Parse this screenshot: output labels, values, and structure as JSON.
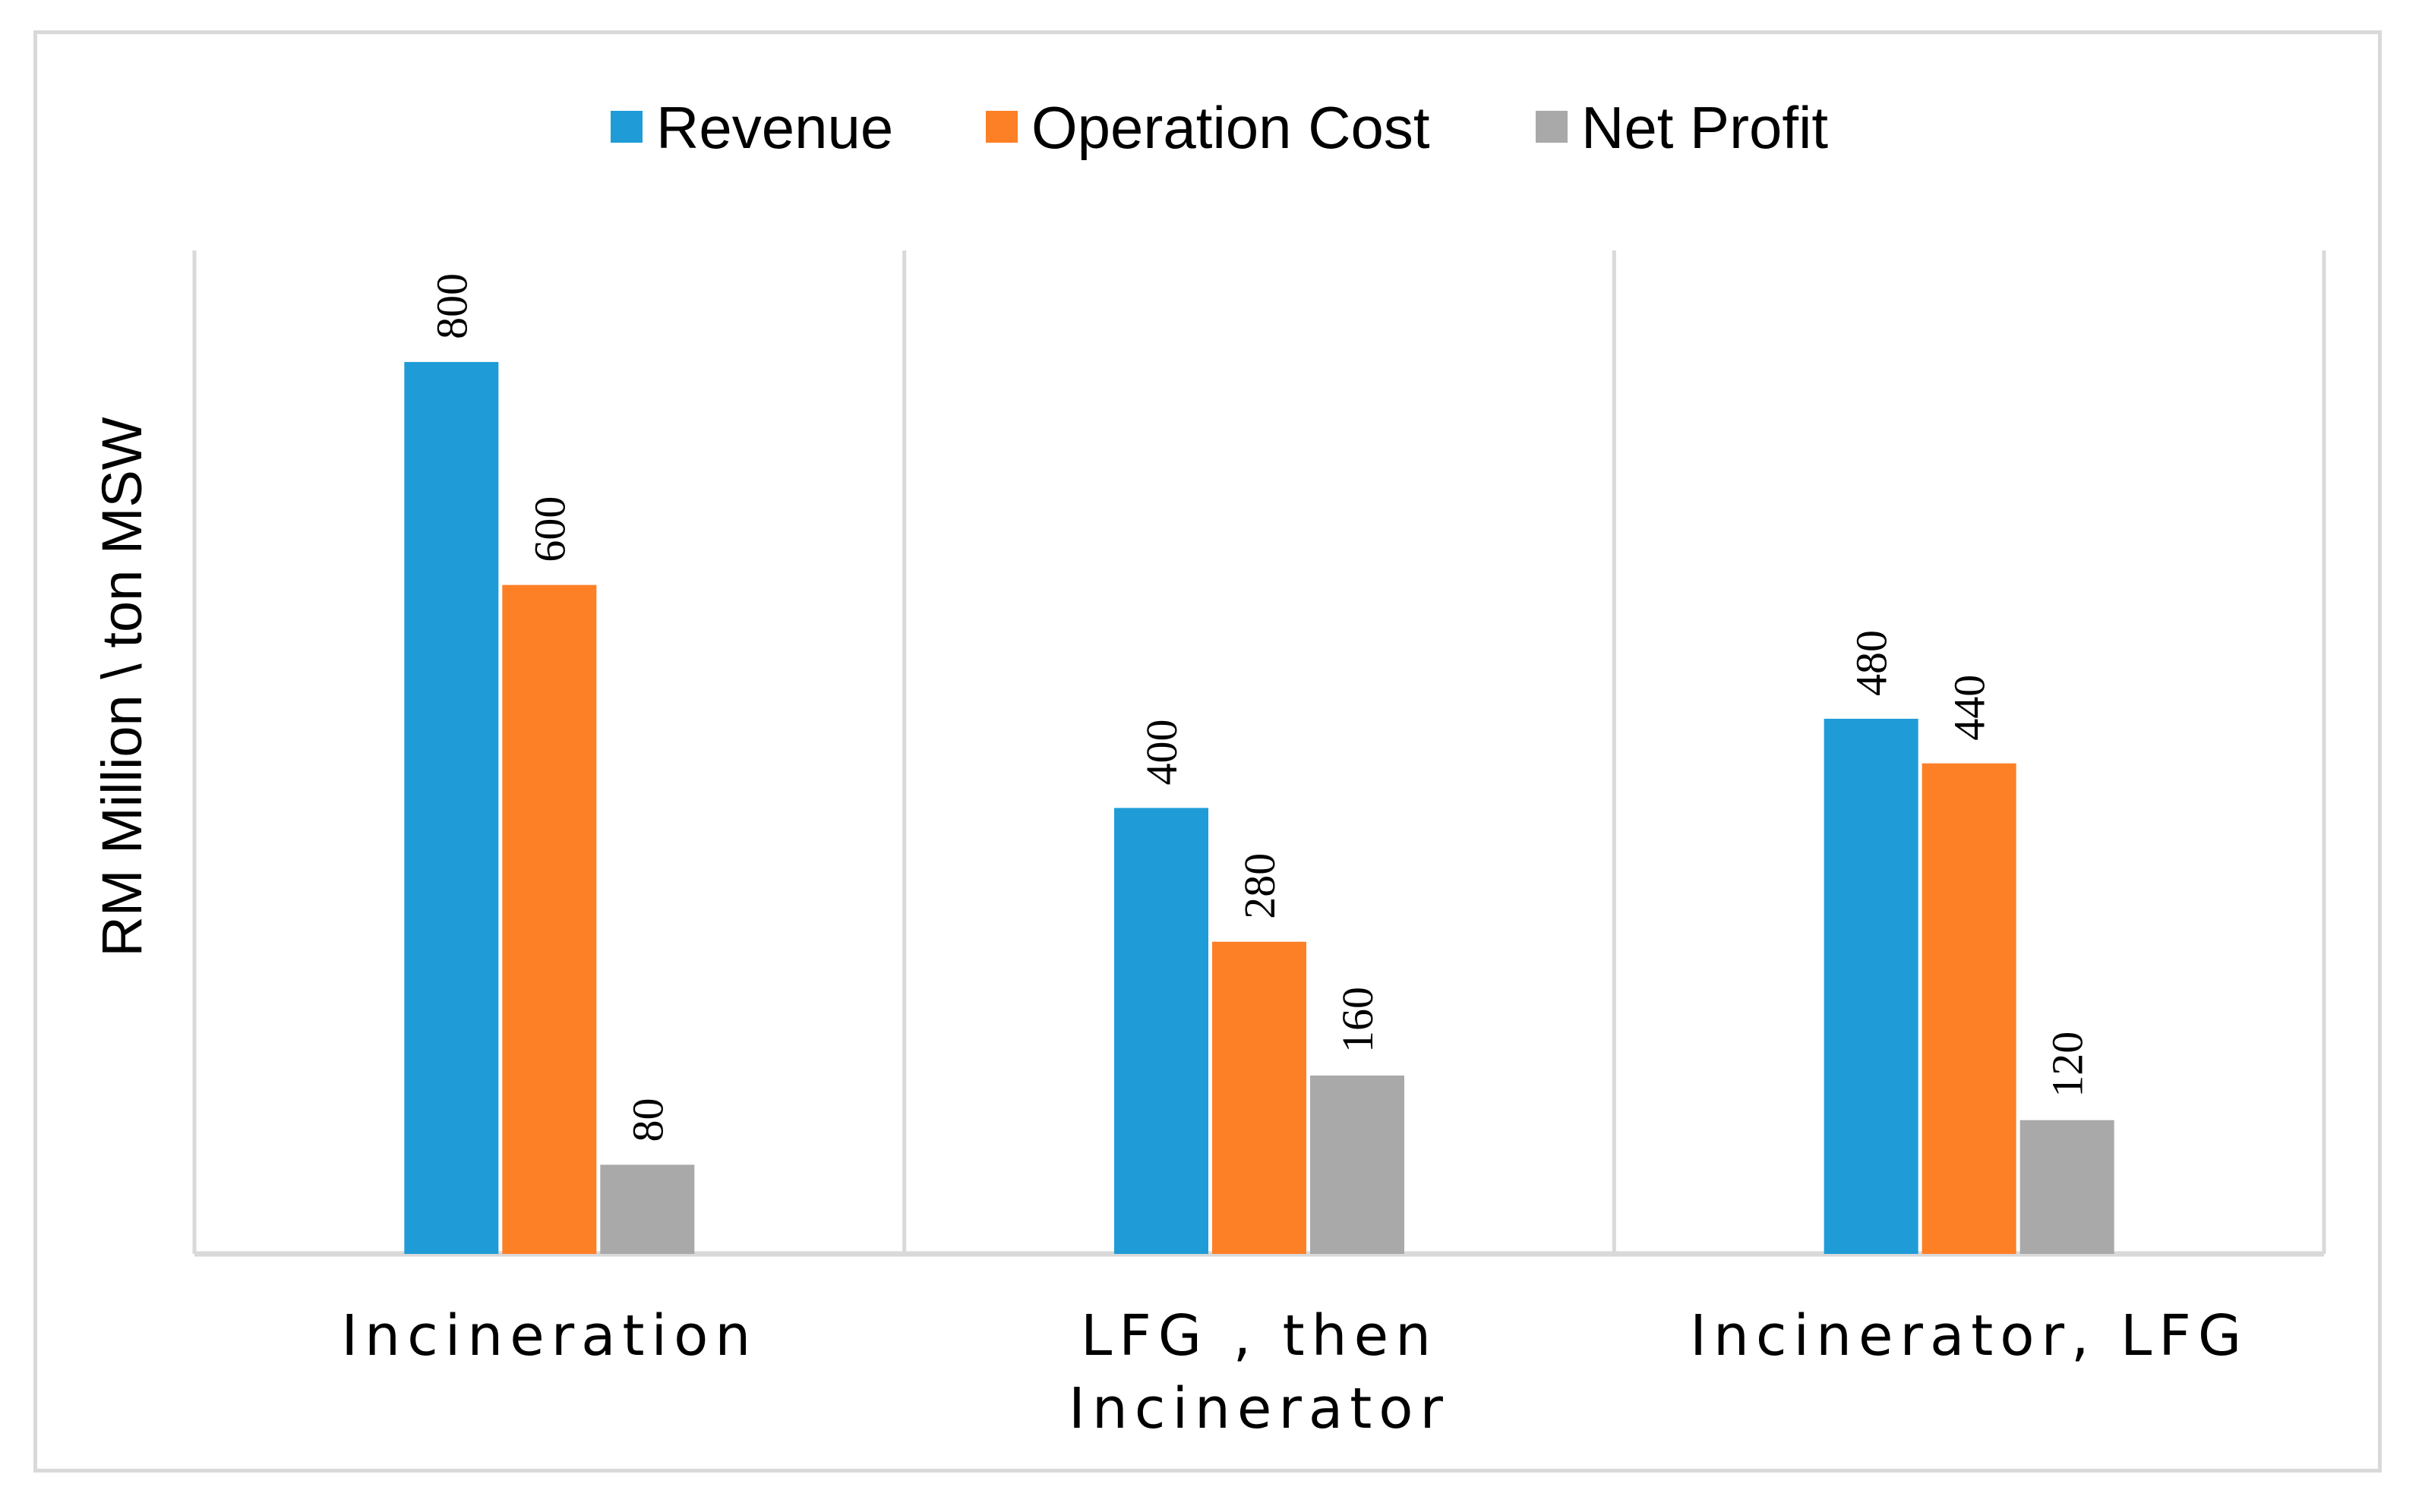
{
  "chart_data": {
    "type": "bar",
    "title": "",
    "xlabel": "",
    "ylabel": "RM Million \\ ton MSW",
    "ylim": [
      0,
      900
    ],
    "grid": "vertical separators",
    "legend_position": "top",
    "categories": [
      [
        "Incineration"
      ],
      [
        "LFG , then",
        "Incinerator"
      ],
      [
        "Incinerator,  LFG"
      ]
    ],
    "series": [
      {
        "name": "Revenue",
        "color": "#1f9cd8",
        "values": [
          800,
          400,
          480
        ]
      },
      {
        "name": "Operation Cost",
        "color": "#fd7f26",
        "values": [
          600,
          280,
          440
        ]
      },
      {
        "name": "Net Profit",
        "color": "#a9a9a9",
        "values": [
          80,
          160,
          120
        ]
      }
    ]
  }
}
